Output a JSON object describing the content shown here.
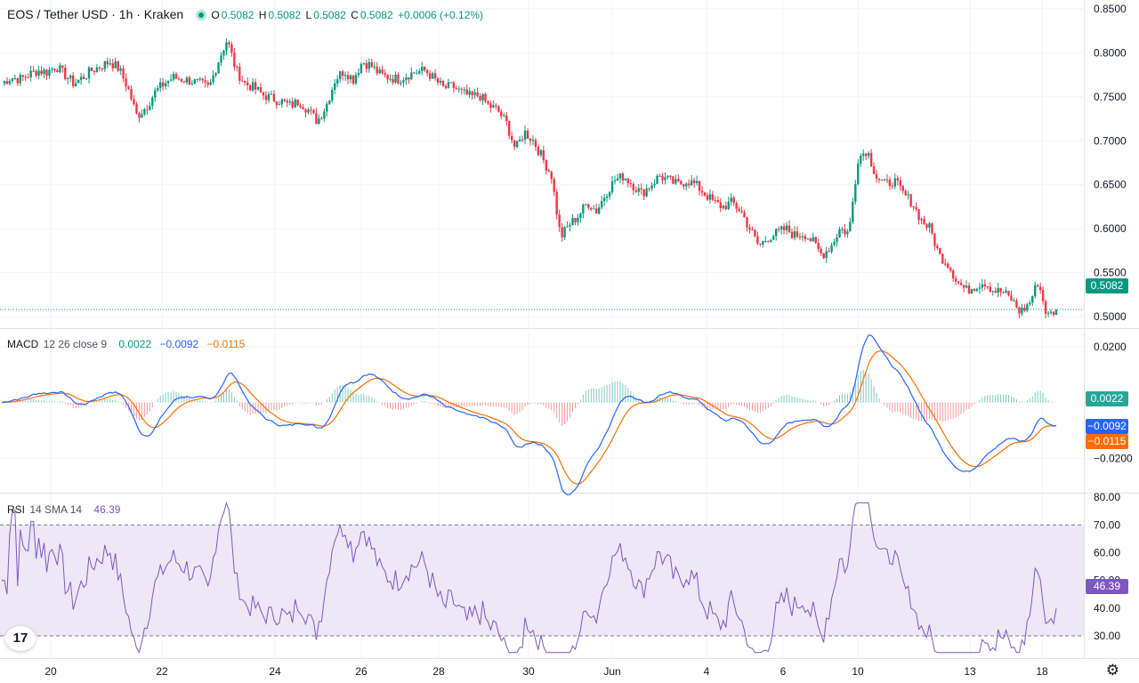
{
  "header": {
    "title": "EOS / Tether USD · 1h · Kraken",
    "open_label": "O",
    "open": "0.5082",
    "high_label": "H",
    "high": "0.5082",
    "low_label": "L",
    "low": "0.5082",
    "close_label": "C",
    "close": "0.5082",
    "change": "+0.0006 (+0.12%)"
  },
  "colors": {
    "up": "#089981",
    "down": "#f23645",
    "macd": "#2962ff",
    "signal": "#ff6d00",
    "rsi": "#7e57c2",
    "rsi_band": "#ede7f6"
  },
  "chart_data": [
    {
      "type": "candlestick",
      "title": "EOS / Tether USD · 1h · Kraken",
      "y_ticks": [
        "0.8500",
        "0.8000",
        "0.7500",
        "0.7000",
        "0.6500",
        "0.6000",
        "0.5500",
        "0.5000"
      ],
      "ylim": [
        0.488,
        0.86
      ],
      "last_price": "0.5082",
      "x_ticks": [
        "20",
        "22",
        "24",
        "26",
        "28",
        "30",
        "Jun",
        "4",
        "6",
        "10",
        "13",
        "18"
      ],
      "approx_close_path": [
        0.765,
        0.772,
        0.77,
        0.775,
        0.78,
        0.778,
        0.785,
        0.775,
        0.765,
        0.772,
        0.78,
        0.785,
        0.79,
        0.782,
        0.76,
        0.728,
        0.738,
        0.755,
        0.765,
        0.772,
        0.77,
        0.768,
        0.765,
        0.76,
        0.79,
        0.815,
        0.78,
        0.765,
        0.76,
        0.752,
        0.748,
        0.745,
        0.74,
        0.745,
        0.735,
        0.722,
        0.74,
        0.77,
        0.78,
        0.77,
        0.79,
        0.785,
        0.775,
        0.772,
        0.77,
        0.775,
        0.778,
        0.78,
        0.77,
        0.76,
        0.762,
        0.755,
        0.75,
        0.752,
        0.74,
        0.735,
        0.72,
        0.69,
        0.71,
        0.7,
        0.68,
        0.66,
        0.59,
        0.605,
        0.615,
        0.63,
        0.62,
        0.64,
        0.655,
        0.66,
        0.65,
        0.64,
        0.65,
        0.66,
        0.655,
        0.65,
        0.655,
        0.65,
        0.64,
        0.63,
        0.625,
        0.63,
        0.62,
        0.6,
        0.58,
        0.59,
        0.595,
        0.6,
        0.592,
        0.595,
        0.585,
        0.57,
        0.58,
        0.6,
        0.595,
        0.68,
        0.69,
        0.66,
        0.65,
        0.655,
        0.64,
        0.63,
        0.61,
        0.6,
        0.57,
        0.56,
        0.54,
        0.53,
        0.535,
        0.54,
        0.53,
        0.528,
        0.52,
        0.505,
        0.515,
        0.54,
        0.5,
        0.508
      ]
    },
    {
      "type": "macd",
      "label": "MACD",
      "params": "12 26 close 9",
      "hist_value": "0.0022",
      "macd_value": "−0.0092",
      "signal_value": "−0.0115",
      "y_ticks": [
        "0.0200",
        "−0.0200"
      ],
      "ylim": [
        -0.032,
        0.026
      ]
    },
    {
      "type": "rsi",
      "label": "RSI",
      "params": "14 SMA 14",
      "value": "46.39",
      "y_ticks": [
        "80.00",
        "70.00",
        "60.00",
        "50.00",
        "40.00",
        "30.00"
      ],
      "ylim": [
        22,
        81
      ],
      "bands": [
        30,
        70
      ]
    }
  ]
}
